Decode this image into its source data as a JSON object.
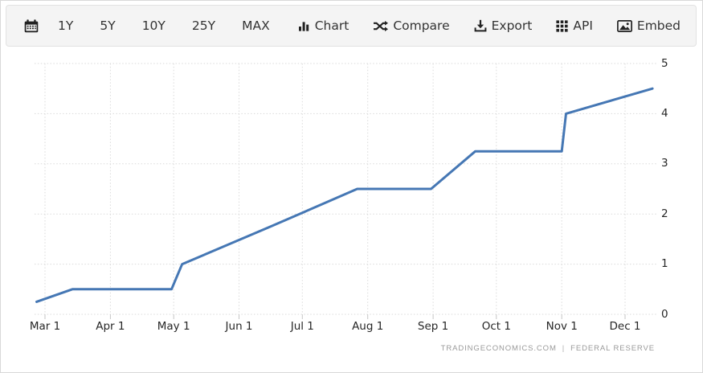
{
  "toolbar": {
    "calendar_icon": "calendar-icon",
    "ranges": [
      "1Y",
      "5Y",
      "10Y",
      "25Y",
      "MAX"
    ],
    "actions": [
      {
        "icon": "bar-chart-icon",
        "label": "Chart"
      },
      {
        "icon": "compare-shuffle-icon",
        "label": "Compare"
      },
      {
        "icon": "download-export-icon",
        "label": "Export"
      },
      {
        "icon": "grid-dots-api-icon",
        "label": "API"
      },
      {
        "icon": "embed-image-icon",
        "label": "Embed"
      }
    ]
  },
  "chart_data": {
    "type": "line",
    "title": "",
    "xlabel": "",
    "ylabel": "",
    "ylim": [
      0,
      5
    ],
    "grid": "dotted",
    "legend": "none",
    "y_ticks": [
      "0",
      "1",
      "2",
      "3",
      "4",
      "5"
    ],
    "x_ticks": [
      {
        "label": "Mar 1",
        "date": "2022-03-01"
      },
      {
        "label": "Apr 1",
        "date": "2022-04-01"
      },
      {
        "label": "May 1",
        "date": "2022-05-01"
      },
      {
        "label": "Jun 1",
        "date": "2022-06-01"
      },
      {
        "label": "Jul 1",
        "date": "2022-07-01"
      },
      {
        "label": "Aug 1",
        "date": "2022-08-01"
      },
      {
        "label": "Sep 1",
        "date": "2022-09-01"
      },
      {
        "label": "Oct 1",
        "date": "2022-10-01"
      },
      {
        "label": "Nov 1",
        "date": "2022-11-01"
      },
      {
        "label": "Dec 1",
        "date": "2022-12-01"
      }
    ],
    "series": [
      {
        "color": "#4577b4",
        "points": [
          [
            "2022-02-25",
            0.25
          ],
          [
            "2022-03-14",
            0.5
          ],
          [
            "2022-04-30",
            0.5
          ],
          [
            "2022-05-05",
            1.0
          ],
          [
            "2022-06-16",
            1.75
          ],
          [
            "2022-07-27",
            2.5
          ],
          [
            "2022-08-31",
            2.5
          ],
          [
            "2022-09-21",
            3.25
          ],
          [
            "2022-11-01",
            3.25
          ],
          [
            "2022-11-03",
            4.0
          ],
          [
            "2022-12-14",
            4.5
          ]
        ]
      }
    ]
  },
  "attribution": {
    "left": "TRADINGECONOMICS.COM",
    "separator": "|",
    "right": "FEDERAL RESERVE"
  }
}
